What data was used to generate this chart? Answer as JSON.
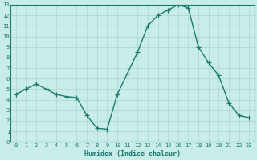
{
  "x": [
    0,
    1,
    2,
    3,
    4,
    5,
    6,
    7,
    8,
    9,
    10,
    11,
    12,
    13,
    14,
    15,
    16,
    17,
    18,
    19,
    20,
    21,
    22,
    23
  ],
  "y": [
    4.5,
    5.0,
    5.5,
    5.0,
    4.5,
    4.3,
    4.2,
    2.5,
    1.3,
    1.2,
    4.5,
    6.5,
    8.5,
    11.0,
    12.0,
    12.5,
    13.0,
    12.7,
    9.0,
    7.5,
    6.3,
    3.7,
    2.5,
    2.3
  ],
  "line_color": "#1a7a6e",
  "bg_color": "#c8ede8",
  "grid_major_color": "#b0d8d0",
  "grid_minor_color": "#daf0ec",
  "xlabel": "Humidex (Indice chaleur)",
  "xlim": [
    -0.5,
    23.5
  ],
  "ylim": [
    0,
    13
  ],
  "xtick_labels": [
    "0",
    "1",
    "2",
    "3",
    "4",
    "5",
    "6",
    "7",
    "8",
    "9",
    "10",
    "11",
    "12",
    "13",
    "14",
    "15",
    "16",
    "17",
    "18",
    "19",
    "20",
    "21",
    "22",
    "23"
  ],
  "ytick_labels": [
    "0",
    "1",
    "2",
    "3",
    "4",
    "5",
    "6",
    "7",
    "8",
    "9",
    "10",
    "11",
    "12",
    "13"
  ],
  "spine_color": "#1a7a6e",
  "tick_color": "#1a7a6e",
  "label_color": "#1a7a6e",
  "marker": "+",
  "linewidth": 1.0,
  "markersize": 4,
  "font_size_ticks": 5.0,
  "font_size_label": 6.0
}
